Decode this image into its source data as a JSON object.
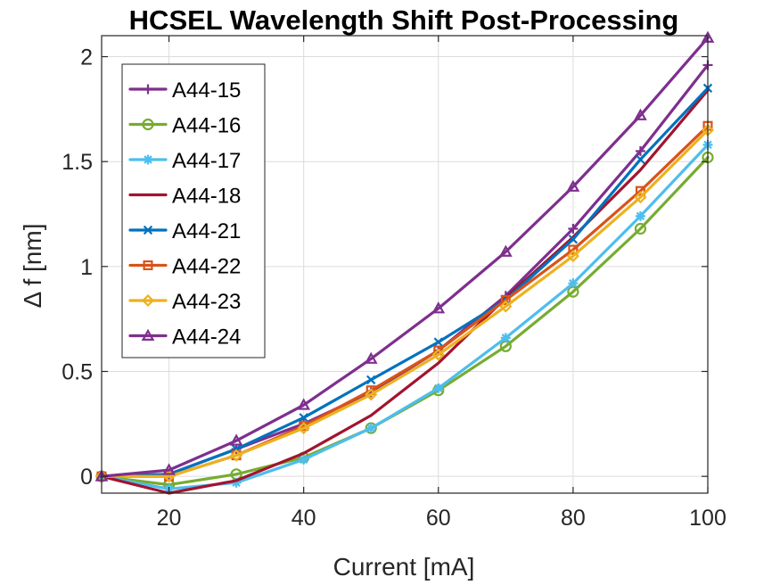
{
  "chart_data": {
    "type": "line",
    "title": "HCSEL Wavelength Shift Post-Processing",
    "xlabel": "Current [mA]",
    "ylabel": "Δ f [nm]",
    "xlim": [
      10,
      100
    ],
    "ylim": [
      -0.08,
      2.1
    ],
    "xticks": [
      20,
      40,
      60,
      80,
      100
    ],
    "yticks": [
      0,
      0.5,
      1,
      1.5,
      2
    ],
    "ytick_labels": [
      "0",
      "0.5",
      "1",
      "1.5",
      "2"
    ],
    "grid": true,
    "legend_position": "top-left",
    "x": [
      10,
      20,
      30,
      40,
      50,
      60,
      70,
      80,
      90,
      100
    ],
    "series": [
      {
        "name": "A44-15",
        "color": "#7E2F8E",
        "marker": "plus",
        "values": [
          0,
          0.01,
          0.13,
          0.25,
          0.4,
          0.6,
          0.86,
          1.18,
          1.55,
          1.96
        ]
      },
      {
        "name": "A44-16",
        "color": "#77AC30",
        "marker": "circle",
        "values": [
          0,
          -0.04,
          0.01,
          0.09,
          0.23,
          0.41,
          0.62,
          0.88,
          1.18,
          1.52
        ]
      },
      {
        "name": "A44-17",
        "color": "#4DBEEE",
        "marker": "asterisk",
        "values": [
          0,
          -0.06,
          -0.03,
          0.08,
          0.23,
          0.42,
          0.66,
          0.92,
          1.24,
          1.58
        ]
      },
      {
        "name": "A44-18",
        "color": "#A2142F",
        "marker": "none",
        "values": [
          0,
          -0.08,
          -0.02,
          0.11,
          0.29,
          0.54,
          0.85,
          1.14,
          1.46,
          1.84
        ]
      },
      {
        "name": "A44-21",
        "color": "#0072BD",
        "marker": "x",
        "values": [
          0,
          0.01,
          0.13,
          0.28,
          0.46,
          0.64,
          0.84,
          1.13,
          1.51,
          1.85
        ]
      },
      {
        "name": "A44-22",
        "color": "#D95319",
        "marker": "square",
        "values": [
          0,
          0.0,
          0.1,
          0.24,
          0.41,
          0.6,
          0.84,
          1.08,
          1.36,
          1.67
        ]
      },
      {
        "name": "A44-23",
        "color": "#EDB120",
        "marker": "diamond",
        "values": [
          0,
          0.0,
          0.1,
          0.23,
          0.39,
          0.58,
          0.81,
          1.05,
          1.33,
          1.65
        ]
      },
      {
        "name": "A44-24",
        "color": "#7E2F8E",
        "marker": "triangle",
        "values": [
          0,
          0.03,
          0.17,
          0.34,
          0.56,
          0.8,
          1.07,
          1.38,
          1.72,
          2.09
        ]
      }
    ]
  }
}
